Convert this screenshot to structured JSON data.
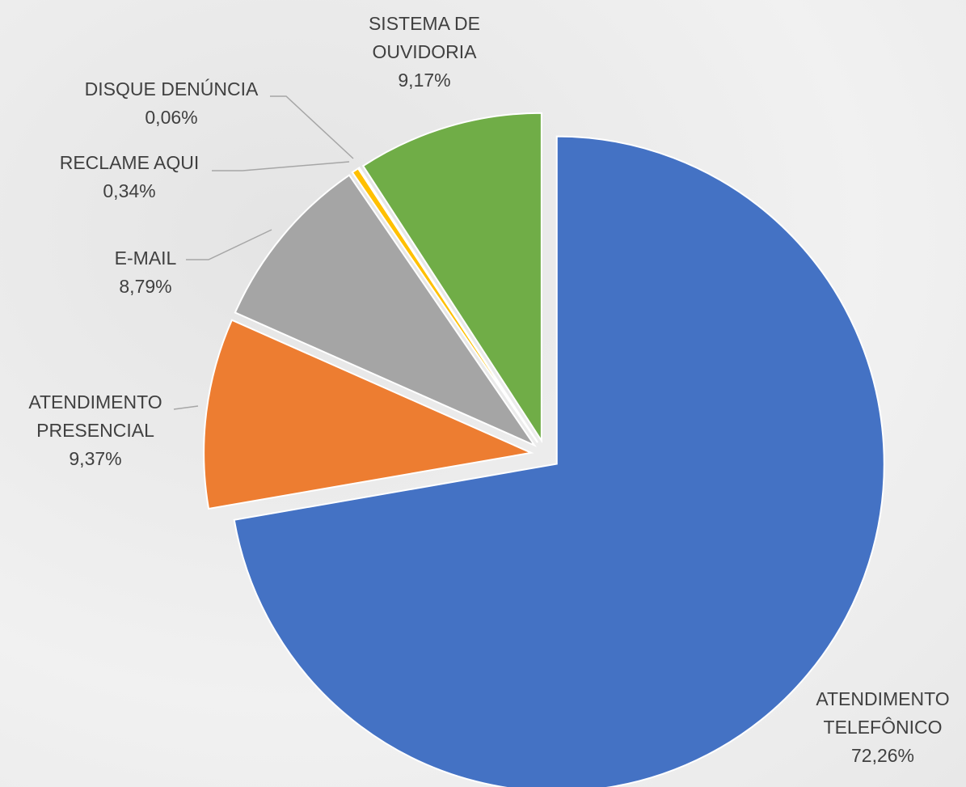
{
  "chart_data": {
    "type": "pie",
    "categories": [
      "ATENDIMENTO TELEFÔNICO",
      "ATENDIMENTO PRESENCIAL",
      "E-MAIL",
      "RECLAME AQUI",
      "DISQUE DENÚNCIA",
      "SISTEMA DE OUVIDORIA"
    ],
    "values": [
      72.26,
      9.37,
      8.79,
      0.34,
      0.06,
      9.17
    ],
    "value_labels": [
      "72,26%",
      "9,37%",
      "8,79%",
      "0,34%",
      "0,06%",
      "9,17%"
    ],
    "colors": [
      "#4472c4",
      "#ed7d31",
      "#a5a5a5",
      "#ffc000",
      "#5b9bd5",
      "#70ad47"
    ]
  }
}
